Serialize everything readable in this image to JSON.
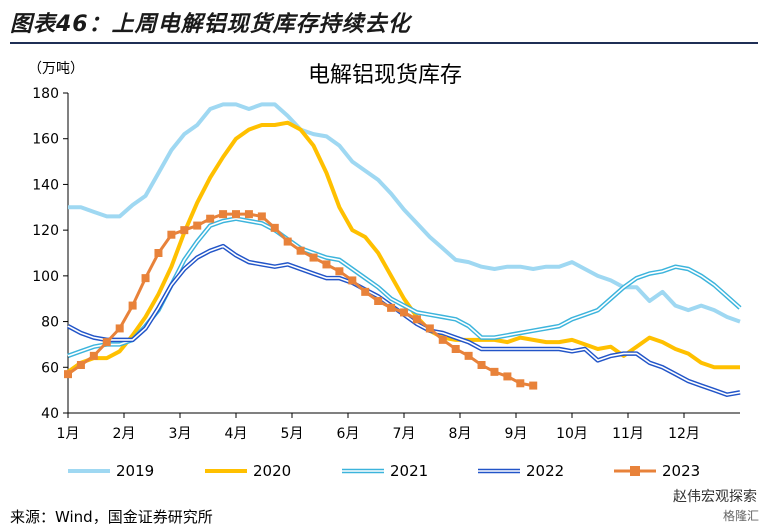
{
  "figure_title": "图表46：上周电解铝现货库存持续去化",
  "source_note": "来源：Wind，国金证券研究所",
  "watermark": "赵伟宏观探索",
  "watermark_logo": "格隆汇",
  "chart_data": {
    "type": "line",
    "title": "电解铝现货库存",
    "ylabel": "（万吨）",
    "ylim": [
      40,
      180
    ],
    "yticks": [
      40,
      60,
      80,
      100,
      120,
      140,
      160,
      180
    ],
    "xticks": [
      "1月",
      "2月",
      "3月",
      "4月",
      "5月",
      "6月",
      "7月",
      "8月",
      "9月",
      "10月",
      "11月",
      "12月"
    ],
    "x_unit": "week of year (1-53)",
    "grid": false,
    "legend_position": "bottom",
    "series": [
      {
        "name": "2019",
        "color": "#9fd8f2",
        "style": "thick",
        "points": [
          [
            1,
            130
          ],
          [
            2,
            130
          ],
          [
            3,
            128
          ],
          [
            4,
            126
          ],
          [
            5,
            126
          ],
          [
            6,
            131
          ],
          [
            7,
            135
          ],
          [
            8,
            145
          ],
          [
            9,
            155
          ],
          [
            10,
            162
          ],
          [
            11,
            166
          ],
          [
            12,
            173
          ],
          [
            13,
            175
          ],
          [
            14,
            175
          ],
          [
            15,
            173
          ],
          [
            16,
            175
          ],
          [
            17,
            175
          ],
          [
            18,
            170
          ],
          [
            19,
            164
          ],
          [
            20,
            162
          ],
          [
            21,
            161
          ],
          [
            22,
            157
          ],
          [
            23,
            150
          ],
          [
            24,
            146
          ],
          [
            25,
            142
          ],
          [
            26,
            136
          ],
          [
            27,
            129
          ],
          [
            28,
            123
          ],
          [
            29,
            117
          ],
          [
            30,
            112
          ],
          [
            31,
            107
          ],
          [
            32,
            106
          ],
          [
            33,
            104
          ],
          [
            34,
            103
          ],
          [
            35,
            104
          ],
          [
            36,
            104
          ],
          [
            37,
            103
          ],
          [
            38,
            104
          ],
          [
            39,
            104
          ],
          [
            40,
            106
          ],
          [
            41,
            103
          ],
          [
            42,
            100
          ],
          [
            43,
            98
          ],
          [
            44,
            95
          ],
          [
            45,
            95
          ],
          [
            46,
            89
          ],
          [
            47,
            93
          ],
          [
            48,
            87
          ],
          [
            49,
            85
          ],
          [
            50,
            87
          ],
          [
            51,
            85
          ],
          [
            52,
            82
          ],
          [
            53,
            80
          ]
        ]
      },
      {
        "name": "2020",
        "color": "#ffc000",
        "style": "thick",
        "points": [
          [
            1,
            58
          ],
          [
            2,
            62
          ],
          [
            3,
            64
          ],
          [
            4,
            64
          ],
          [
            5,
            67
          ],
          [
            6,
            74
          ],
          [
            7,
            82
          ],
          [
            8,
            92
          ],
          [
            9,
            104
          ],
          [
            10,
            119
          ],
          [
            11,
            132
          ],
          [
            12,
            143
          ],
          [
            13,
            152
          ],
          [
            14,
            160
          ],
          [
            15,
            164
          ],
          [
            16,
            166
          ],
          [
            17,
            166
          ],
          [
            18,
            167
          ],
          [
            19,
            164
          ],
          [
            20,
            157
          ],
          [
            21,
            145
          ],
          [
            22,
            130
          ],
          [
            23,
            120
          ],
          [
            24,
            117
          ],
          [
            25,
            110
          ],
          [
            26,
            100
          ],
          [
            27,
            90
          ],
          [
            28,
            82
          ],
          [
            29,
            76
          ],
          [
            30,
            73
          ],
          [
            31,
            72
          ],
          [
            32,
            72
          ],
          [
            33,
            72
          ],
          [
            34,
            72
          ],
          [
            35,
            71
          ],
          [
            36,
            73
          ],
          [
            37,
            72
          ],
          [
            38,
            71
          ],
          [
            39,
            71
          ],
          [
            40,
            72
          ],
          [
            41,
            70
          ],
          [
            42,
            68
          ],
          [
            43,
            69
          ],
          [
            44,
            65
          ],
          [
            45,
            69
          ],
          [
            46,
            73
          ],
          [
            47,
            71
          ],
          [
            48,
            68
          ],
          [
            49,
            66
          ],
          [
            50,
            62
          ],
          [
            51,
            60
          ],
          [
            52,
            60
          ],
          [
            53,
            60
          ]
        ]
      },
      {
        "name": "2021",
        "color": "#3cb4dc",
        "style": "double",
        "points": [
          [
            1,
            65
          ],
          [
            2,
            67
          ],
          [
            3,
            69
          ],
          [
            4,
            70
          ],
          [
            5,
            70
          ],
          [
            6,
            72
          ],
          [
            7,
            78
          ],
          [
            8,
            85
          ],
          [
            9,
            96
          ],
          [
            10,
            107
          ],
          [
            11,
            115
          ],
          [
            12,
            122
          ],
          [
            13,
            124
          ],
          [
            14,
            125
          ],
          [
            15,
            124
          ],
          [
            16,
            123
          ],
          [
            17,
            120
          ],
          [
            18,
            116
          ],
          [
            19,
            112
          ],
          [
            20,
            110
          ],
          [
            21,
            108
          ],
          [
            22,
            107
          ],
          [
            23,
            103
          ],
          [
            24,
            99
          ],
          [
            25,
            95
          ],
          [
            26,
            90
          ],
          [
            27,
            87
          ],
          [
            28,
            84
          ],
          [
            29,
            83
          ],
          [
            30,
            82
          ],
          [
            31,
            81
          ],
          [
            32,
            78
          ],
          [
            33,
            73
          ],
          [
            34,
            73
          ],
          [
            35,
            74
          ],
          [
            36,
            75
          ],
          [
            37,
            76
          ],
          [
            38,
            77
          ],
          [
            39,
            78
          ],
          [
            40,
            81
          ],
          [
            41,
            83
          ],
          [
            42,
            85
          ],
          [
            43,
            90
          ],
          [
            44,
            95
          ],
          [
            45,
            99
          ],
          [
            46,
            101
          ],
          [
            47,
            102
          ],
          [
            48,
            104
          ],
          [
            49,
            103
          ],
          [
            50,
            100
          ],
          [
            51,
            96
          ],
          [
            52,
            91
          ],
          [
            53,
            86
          ]
        ]
      },
      {
        "name": "2022",
        "color": "#2255c8",
        "style": "double",
        "points": [
          [
            1,
            78
          ],
          [
            2,
            75
          ],
          [
            3,
            73
          ],
          [
            4,
            72
          ],
          [
            5,
            72
          ],
          [
            6,
            72
          ],
          [
            7,
            77
          ],
          [
            8,
            86
          ],
          [
            9,
            96
          ],
          [
            10,
            103
          ],
          [
            11,
            108
          ],
          [
            12,
            111
          ],
          [
            13,
            113
          ],
          [
            14,
            109
          ],
          [
            15,
            106
          ],
          [
            16,
            105
          ],
          [
            17,
            104
          ],
          [
            18,
            105
          ],
          [
            19,
            103
          ],
          [
            20,
            101
          ],
          [
            21,
            99
          ],
          [
            22,
            99
          ],
          [
            23,
            97
          ],
          [
            24,
            94
          ],
          [
            25,
            91
          ],
          [
            26,
            87
          ],
          [
            27,
            83
          ],
          [
            28,
            79
          ],
          [
            29,
            76
          ],
          [
            30,
            75
          ],
          [
            31,
            73
          ],
          [
            32,
            71
          ],
          [
            33,
            68
          ],
          [
            34,
            68
          ],
          [
            35,
            68
          ],
          [
            36,
            68
          ],
          [
            37,
            68
          ],
          [
            38,
            68
          ],
          [
            39,
            68
          ],
          [
            40,
            67
          ],
          [
            41,
            68
          ],
          [
            42,
            63
          ],
          [
            43,
            65
          ],
          [
            44,
            66
          ],
          [
            45,
            66
          ],
          [
            46,
            62
          ],
          [
            47,
            60
          ],
          [
            48,
            57
          ],
          [
            49,
            54
          ],
          [
            50,
            52
          ],
          [
            51,
            50
          ],
          [
            52,
            48
          ],
          [
            53,
            49
          ]
        ]
      },
      {
        "name": "2023",
        "color": "#e8823a",
        "style": "marker",
        "points": [
          [
            1,
            57
          ],
          [
            2,
            61
          ],
          [
            3,
            65
          ],
          [
            4,
            71
          ],
          [
            5,
            77
          ],
          [
            6,
            87
          ],
          [
            7,
            99
          ],
          [
            8,
            110
          ],
          [
            9,
            118
          ],
          [
            10,
            120
          ],
          [
            11,
            122
          ],
          [
            12,
            125
          ],
          [
            13,
            127
          ],
          [
            14,
            127
          ],
          [
            15,
            127
          ],
          [
            16,
            126
          ],
          [
            17,
            121
          ],
          [
            18,
            115
          ],
          [
            19,
            111
          ],
          [
            20,
            108
          ],
          [
            21,
            105
          ],
          [
            22,
            102
          ],
          [
            23,
            98
          ],
          [
            24,
            93
          ],
          [
            25,
            89
          ],
          [
            26,
            86
          ],
          [
            27,
            84
          ],
          [
            28,
            81
          ],
          [
            29,
            77
          ],
          [
            30,
            72
          ],
          [
            31,
            68
          ],
          [
            32,
            65
          ],
          [
            33,
            61
          ],
          [
            34,
            58
          ],
          [
            35,
            56
          ],
          [
            36,
            53
          ],
          [
            37,
            52
          ]
        ]
      }
    ]
  }
}
